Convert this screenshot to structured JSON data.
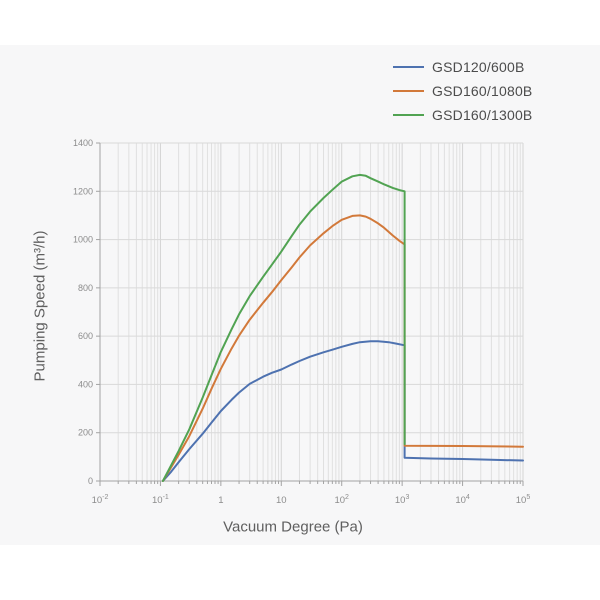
{
  "page": {
    "background": "#ffffff",
    "panel_background": "#f7f7f8"
  },
  "chart_data": {
    "type": "line",
    "title": "",
    "xlabel": "Vacuum Degree (Pa)",
    "ylabel": "Pumping Speed (m³/h)",
    "x_scale": "log",
    "x_decade_min": -2,
    "x_decade_max": 5,
    "x_ticks": [
      {
        "text": "10",
        "sup": "-2",
        "decade": -2
      },
      {
        "text": "10",
        "sup": "-1",
        "decade": -1
      },
      {
        "text": "1",
        "sup": "",
        "decade": 0
      },
      {
        "text": "10",
        "sup": "",
        "decade": 1
      },
      {
        "text": "10",
        "sup": "2",
        "decade": 2
      },
      {
        "text": "10",
        "sup": "3",
        "decade": 3
      },
      {
        "text": "10",
        "sup": "4",
        "decade": 4
      },
      {
        "text": "10",
        "sup": "5",
        "decade": 5
      }
    ],
    "ylim": [
      0,
      1400
    ],
    "y_tick_step": 200,
    "y_tick_labels": [
      "0",
      "200",
      "400",
      "600",
      "800",
      "1000",
      "1200",
      "1400"
    ],
    "grid": true,
    "legend_position": "top-right",
    "colors": {
      "grid_minor": "#e0e0e0",
      "grid_major": "#d4d4d4",
      "grid_horizontal": "#d9d9d9",
      "axis": "#a3a3a3",
      "tick_text": "#8c8c8c",
      "axis_title_text": "#5f5f5f",
      "legend_text": "#4c4c4c"
    },
    "series": [
      {
        "name": "GSD120/600B",
        "color": "#4e72b0",
        "points": [
          [
            0.11,
            0
          ],
          [
            0.15,
            38
          ],
          [
            0.2,
            78
          ],
          [
            0.3,
            132
          ],
          [
            0.5,
            196
          ],
          [
            0.7,
            242
          ],
          [
            1,
            290
          ],
          [
            1.5,
            336
          ],
          [
            2,
            366
          ],
          [
            3,
            402
          ],
          [
            5,
            432
          ],
          [
            7,
            448
          ],
          [
            10,
            462
          ],
          [
            15,
            483
          ],
          [
            20,
            497
          ],
          [
            30,
            515
          ],
          [
            50,
            533
          ],
          [
            70,
            544
          ],
          [
            100,
            556
          ],
          [
            150,
            568
          ],
          [
            200,
            575
          ],
          [
            300,
            579
          ],
          [
            400,
            579
          ],
          [
            600,
            575
          ],
          [
            800,
            569
          ],
          [
            1100,
            562
          ],
          [
            1100,
            96
          ],
          [
            3000,
            93
          ],
          [
            10000,
            91
          ],
          [
            30000,
            88
          ],
          [
            100000,
            85
          ]
        ]
      },
      {
        "name": "GSD160/1080B",
        "color": "#d2793a",
        "points": [
          [
            0.11,
            0
          ],
          [
            0.2,
            108
          ],
          [
            0.3,
            186
          ],
          [
            0.5,
            300
          ],
          [
            0.7,
            382
          ],
          [
            1,
            465
          ],
          [
            1.5,
            548
          ],
          [
            2,
            602
          ],
          [
            3,
            668
          ],
          [
            5,
            738
          ],
          [
            7,
            782
          ],
          [
            10,
            832
          ],
          [
            15,
            886
          ],
          [
            20,
            926
          ],
          [
            30,
            976
          ],
          [
            50,
            1026
          ],
          [
            70,
            1056
          ],
          [
            100,
            1082
          ],
          [
            150,
            1098
          ],
          [
            200,
            1100
          ],
          [
            250,
            1095
          ],
          [
            300,
            1086
          ],
          [
            400,
            1067
          ],
          [
            500,
            1049
          ],
          [
            700,
            1017
          ],
          [
            900,
            995
          ],
          [
            1100,
            980
          ],
          [
            1100,
            146
          ],
          [
            10000,
            145
          ],
          [
            100000,
            142
          ]
        ]
      },
      {
        "name": "GSD160/1300B",
        "color": "#51a352",
        "points": [
          [
            0.11,
            0
          ],
          [
            0.2,
            124
          ],
          [
            0.3,
            214
          ],
          [
            0.5,
            346
          ],
          [
            0.7,
            438
          ],
          [
            1,
            535
          ],
          [
            1.5,
            628
          ],
          [
            2,
            690
          ],
          [
            3,
            766
          ],
          [
            5,
            846
          ],
          [
            7,
            896
          ],
          [
            10,
            950
          ],
          [
            15,
            1016
          ],
          [
            20,
            1062
          ],
          [
            30,
            1116
          ],
          [
            50,
            1172
          ],
          [
            70,
            1206
          ],
          [
            100,
            1240
          ],
          [
            150,
            1262
          ],
          [
            200,
            1268
          ],
          [
            250,
            1264
          ],
          [
            300,
            1254
          ],
          [
            400,
            1240
          ],
          [
            500,
            1229
          ],
          [
            700,
            1214
          ],
          [
            900,
            1205
          ],
          [
            1100,
            1200
          ],
          [
            1100,
            152
          ]
        ]
      }
    ]
  }
}
